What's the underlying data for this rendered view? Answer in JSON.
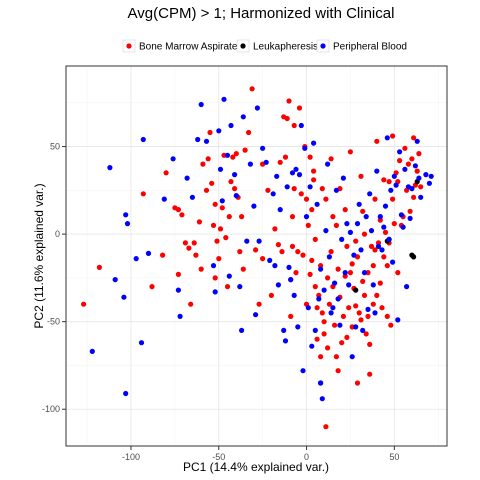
{
  "chart_data": {
    "type": "scatter",
    "title": "Avg(CPM) > 1; Harmonized with Clinical",
    "xlabel": "PC1 (14.4% explained var.)",
    "ylabel": "PC2 (11.6% explained var.)",
    "xlim": [
      -137,
      80
    ],
    "ylim": [
      -121,
      96
    ],
    "xticks": [
      -100,
      -50,
      0,
      50
    ],
    "yticks": [
      -100,
      -50,
      0,
      50
    ],
    "grid": true,
    "legend_position": "top",
    "series": [
      {
        "name": "Bone Marrow Aspirate",
        "color": "#ff0000",
        "points": [
          [
            -127,
            -40
          ],
          [
            -118,
            -19
          ],
          [
            -93,
            23
          ],
          [
            -88,
            -30
          ],
          [
            -82,
            -12
          ],
          [
            -80,
            35
          ],
          [
            -75,
            15
          ],
          [
            -73,
            -23
          ],
          [
            -73,
            14
          ],
          [
            -71,
            11
          ],
          [
            -69,
            -5
          ],
          [
            -67,
            -8
          ],
          [
            -66,
            -40
          ],
          [
            -64,
            -5
          ],
          [
            -63,
            -12
          ],
          [
            -61,
            7
          ],
          [
            -60,
            -20
          ],
          [
            -59,
            40
          ],
          [
            -57,
            25
          ],
          [
            -56,
            43
          ],
          [
            -55,
            58
          ],
          [
            -54,
            29
          ],
          [
            -53,
            5
          ],
          [
            -52,
            17
          ],
          [
            -52,
            -25
          ],
          [
            -51,
            -4
          ],
          [
            -50,
            -14
          ],
          [
            -49,
            3
          ],
          [
            -48,
            15
          ],
          [
            -47,
            45
          ],
          [
            -46,
            -2
          ],
          [
            -45,
            -30
          ],
          [
            -44,
            10
          ],
          [
            -43,
            30
          ],
          [
            -42,
            44
          ],
          [
            -41,
            26
          ],
          [
            -40,
            46
          ],
          [
            -39,
            21
          ],
          [
            -38,
            -10
          ],
          [
            -37,
            10
          ],
          [
            -36,
            -20
          ],
          [
            -35,
            48
          ],
          [
            -33,
            58
          ],
          [
            -31,
            83
          ],
          [
            -29,
            -9
          ],
          [
            -27,
            -40
          ],
          [
            -25,
            40
          ],
          [
            -25,
            -14
          ],
          [
            -22,
            25
          ],
          [
            -20,
            -35
          ],
          [
            -18,
            3
          ],
          [
            -16,
            -6
          ],
          [
            -15,
            41
          ],
          [
            -14,
            -10
          ],
          [
            -13,
            67
          ],
          [
            -12,
            44
          ],
          [
            -11,
            66
          ],
          [
            -10,
            76
          ],
          [
            -9,
            -26
          ],
          [
            -9,
            -47
          ],
          [
            -8,
            10
          ],
          [
            -8,
            -7
          ],
          [
            -7,
            62
          ],
          [
            -7,
            26
          ],
          [
            -6,
            -22
          ],
          [
            -5,
            -10
          ],
          [
            -4,
            72
          ],
          [
            -3,
            23
          ],
          [
            -2,
            -12
          ],
          [
            -1,
            50
          ],
          [
            0,
            20
          ],
          [
            0,
            -40
          ],
          [
            1,
            5
          ],
          [
            2,
            44
          ],
          [
            2,
            -23
          ],
          [
            3,
            14
          ],
          [
            3,
            -15
          ],
          [
            4,
            36
          ],
          [
            4,
            31
          ],
          [
            5,
            -3
          ],
          [
            5,
            -30
          ],
          [
            6,
            -60
          ],
          [
            6,
            -42
          ],
          [
            7,
            -35
          ],
          [
            8,
            -18
          ],
          [
            8,
            -70
          ],
          [
            9,
            26
          ],
          [
            9,
            -45
          ],
          [
            10,
            -50
          ],
          [
            10,
            -57
          ],
          [
            11,
            -110
          ],
          [
            11,
            20
          ],
          [
            12,
            -65
          ],
          [
            12,
            -25
          ],
          [
            13,
            -40
          ],
          [
            14,
            43
          ],
          [
            14,
            -10
          ],
          [
            15,
            10
          ],
          [
            15,
            -30
          ],
          [
            16,
            -52
          ],
          [
            17,
            5
          ],
          [
            17,
            -70
          ],
          [
            18,
            -20
          ],
          [
            18,
            -78
          ],
          [
            19,
            26
          ],
          [
            19,
            -36
          ],
          [
            20,
            -62
          ],
          [
            21,
            -47
          ],
          [
            22,
            -24
          ],
          [
            22,
            14
          ],
          [
            23,
            -7
          ],
          [
            23,
            -59
          ],
          [
            24,
            -42
          ],
          [
            25,
            -22
          ],
          [
            25,
            47
          ],
          [
            26,
            -17
          ],
          [
            26,
            -53
          ],
          [
            27,
            -31
          ],
          [
            28,
            -41
          ],
          [
            28,
            -4
          ],
          [
            29,
            -13
          ],
          [
            29,
            -85
          ],
          [
            30,
            -45
          ],
          [
            31,
            33
          ],
          [
            31,
            -49
          ],
          [
            32,
            13
          ],
          [
            32,
            -27
          ],
          [
            33,
            -35
          ],
          [
            33,
            0
          ],
          [
            34,
            -57
          ],
          [
            35,
            -47
          ],
          [
            35,
            -22
          ],
          [
            36,
            -63
          ],
          [
            36,
            -80
          ],
          [
            37,
            -7
          ],
          [
            38,
            -18
          ],
          [
            38,
            -40
          ],
          [
            39,
            -9
          ],
          [
            39,
            20
          ],
          [
            40,
            -35
          ],
          [
            40,
            53
          ],
          [
            41,
            -5
          ],
          [
            42,
            -28
          ],
          [
            42,
            8
          ],
          [
            43,
            -42
          ],
          [
            44,
            31
          ],
          [
            44,
            -13
          ],
          [
            45,
            1
          ],
          [
            46,
            -18
          ],
          [
            46,
            -47
          ],
          [
            47,
            -5
          ],
          [
            47,
            30
          ],
          [
            48,
            -52
          ],
          [
            49,
            20
          ],
          [
            49,
            56
          ],
          [
            50,
            6
          ],
          [
            51,
            35
          ],
          [
            52,
            -22
          ],
          [
            52,
            30
          ],
          [
            53,
            42
          ],
          [
            54,
            5
          ],
          [
            55,
            10
          ],
          [
            56,
            49
          ],
          [
            57,
            25
          ],
          [
            58,
            40
          ],
          [
            59,
            13
          ],
          [
            60,
            43
          ],
          [
            61,
            21
          ],
          [
            61,
            55
          ],
          [
            62,
            28
          ],
          [
            63,
            36
          ],
          [
            64,
            46
          ],
          [
            65,
            27
          ]
        ]
      },
      {
        "name": "Leukapheresis",
        "color": "#000000",
        "points": [
          [
            8,
            -85
          ],
          [
            28,
            -32
          ],
          [
            46,
            -4
          ],
          [
            47,
            -3
          ],
          [
            60,
            -12
          ],
          [
            61,
            -13
          ],
          [
            63,
            30
          ]
        ]
      },
      {
        "name": "Peripheral Blood",
        "color": "#0000ff",
        "points": [
          [
            -122,
            -67
          ],
          [
            -112,
            38
          ],
          [
            -109,
            -26
          ],
          [
            -104,
            -36
          ],
          [
            -103,
            -91
          ],
          [
            -103,
            11
          ],
          [
            -102,
            6
          ],
          [
            -97,
            -14
          ],
          [
            -94,
            -62
          ],
          [
            -93,
            54
          ],
          [
            -90,
            -11
          ],
          [
            -81,
            20
          ],
          [
            -76,
            43
          ],
          [
            -73,
            -32
          ],
          [
            -72,
            -47
          ],
          [
            -68,
            32
          ],
          [
            -65,
            21
          ],
          [
            -62,
            54
          ],
          [
            -60,
            74
          ],
          [
            -57,
            53
          ],
          [
            -53,
            -18
          ],
          [
            -52,
            -33
          ],
          [
            -50,
            59
          ],
          [
            -49,
            37
          ],
          [
            -48,
            19
          ],
          [
            -47,
            77
          ],
          [
            -45,
            45
          ],
          [
            -44,
            -24
          ],
          [
            -43,
            62
          ],
          [
            -41,
            34
          ],
          [
            -40,
            22
          ],
          [
            -38,
            -30
          ],
          [
            -37,
            -55
          ],
          [
            -36,
            67
          ],
          [
            -34,
            -4
          ],
          [
            -32,
            40
          ],
          [
            -30,
            16
          ],
          [
            -29,
            -46
          ],
          [
            -28,
            72
          ],
          [
            -27,
            -4
          ],
          [
            -25,
            49
          ],
          [
            -23,
            41
          ],
          [
            -21,
            -15
          ],
          [
            -19,
            23
          ],
          [
            -18,
            -18
          ],
          [
            -17,
            33
          ],
          [
            -16,
            -29
          ],
          [
            -15,
            14
          ],
          [
            -13,
            -55
          ],
          [
            -12,
            -61
          ],
          [
            -11,
            27
          ],
          [
            -10,
            -19
          ],
          [
            -9,
            -26
          ],
          [
            -8,
            35
          ],
          [
            -7,
            -35
          ],
          [
            -6,
            37
          ],
          [
            -5,
            -53
          ],
          [
            -4,
            34
          ],
          [
            -3,
            62
          ],
          [
            -2,
            -78
          ],
          [
            -1,
            49
          ],
          [
            0,
            10
          ],
          [
            1,
            -42
          ],
          [
            2,
            27
          ],
          [
            3,
            -64
          ],
          [
            4,
            52
          ],
          [
            5,
            -55
          ],
          [
            6,
            17
          ],
          [
            7,
            -37
          ],
          [
            8,
            -20
          ],
          [
            8,
            -85
          ],
          [
            9,
            -94
          ],
          [
            10,
            -32
          ],
          [
            11,
            2
          ],
          [
            12,
            40
          ],
          [
            13,
            -13
          ],
          [
            14,
            -45
          ],
          [
            15,
            -42
          ],
          [
            16,
            -28
          ],
          [
            17,
            25
          ],
          [
            18,
            -37
          ],
          [
            19,
            -52
          ],
          [
            20,
            -3
          ],
          [
            21,
            32
          ],
          [
            22,
            -22
          ],
          [
            23,
            6
          ],
          [
            24,
            -29
          ],
          [
            25,
            1
          ],
          [
            26,
            -70
          ],
          [
            27,
            -12
          ],
          [
            28,
            -53
          ],
          [
            29,
            6
          ],
          [
            30,
            17
          ],
          [
            31,
            -9
          ],
          [
            32,
            -55
          ],
          [
            33,
            -22
          ],
          [
            34,
            10
          ],
          [
            35,
            -43
          ],
          [
            36,
            23
          ],
          [
            37,
            2
          ],
          [
            38,
            -29
          ],
          [
            39,
            -45
          ],
          [
            40,
            36
          ],
          [
            41,
            -7
          ],
          [
            42,
            10
          ],
          [
            43,
            -9
          ],
          [
            44,
            4
          ],
          [
            45,
            16
          ],
          [
            46,
            55
          ],
          [
            47,
            -3
          ],
          [
            48,
            25
          ],
          [
            49,
            -16
          ],
          [
            50,
            33
          ],
          [
            51,
            28
          ],
          [
            52,
            -49
          ],
          [
            53,
            47
          ],
          [
            54,
            11
          ],
          [
            55,
            4
          ],
          [
            56,
            37
          ],
          [
            57,
            -30
          ],
          [
            58,
            27
          ],
          [
            59,
            9
          ],
          [
            60,
            26
          ],
          [
            62,
            39
          ],
          [
            63,
            53
          ],
          [
            64,
            32
          ],
          [
            65,
            21
          ],
          [
            68,
            34
          ],
          [
            70,
            29
          ],
          [
            71,
            33
          ]
        ]
      }
    ]
  }
}
